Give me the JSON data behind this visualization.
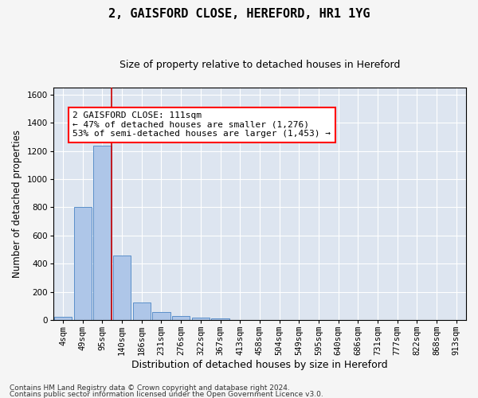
{
  "title1": "2, GAISFORD CLOSE, HEREFORD, HR1 1YG",
  "title2": "Size of property relative to detached houses in Hereford",
  "xlabel": "Distribution of detached houses by size in Hereford",
  "ylabel": "Number of detached properties",
  "footnote1": "Contains HM Land Registry data © Crown copyright and database right 2024.",
  "footnote2": "Contains public sector information licensed under the Open Government Licence v3.0.",
  "categories": [
    "4sqm",
    "49sqm",
    "95sqm",
    "140sqm",
    "186sqm",
    "231sqm",
    "276sqm",
    "322sqm",
    "367sqm",
    "413sqm",
    "458sqm",
    "504sqm",
    "549sqm",
    "595sqm",
    "640sqm",
    "686sqm",
    "731sqm",
    "777sqm",
    "822sqm",
    "868sqm",
    "913sqm"
  ],
  "values": [
    25,
    805,
    1240,
    455,
    125,
    57,
    27,
    18,
    12,
    0,
    0,
    0,
    0,
    0,
    0,
    0,
    0,
    0,
    0,
    0,
    0
  ],
  "bar_color": "#aec6e8",
  "bar_edge_color": "#5b8fc9",
  "vline_color": "#cc0000",
  "vline_x_index": 2.48,
  "annotation_title": "2 GAISFORD CLOSE: 111sqm",
  "annotation_line2": "← 47% of detached houses are smaller (1,276)",
  "annotation_line3": "53% of semi-detached houses are larger (1,453) →",
  "ylim": [
    0,
    1650
  ],
  "yticks": [
    0,
    200,
    400,
    600,
    800,
    1000,
    1200,
    1400,
    1600
  ],
  "fig_bg": "#f5f5f5",
  "plot_bg": "#dde5f0",
  "grid_color": "#ffffff",
  "title1_fontsize": 11,
  "title2_fontsize": 9,
  "xlabel_fontsize": 9,
  "ylabel_fontsize": 8.5,
  "tick_fontsize": 7.5,
  "annot_fontsize": 8,
  "footnote_fontsize": 6.5
}
